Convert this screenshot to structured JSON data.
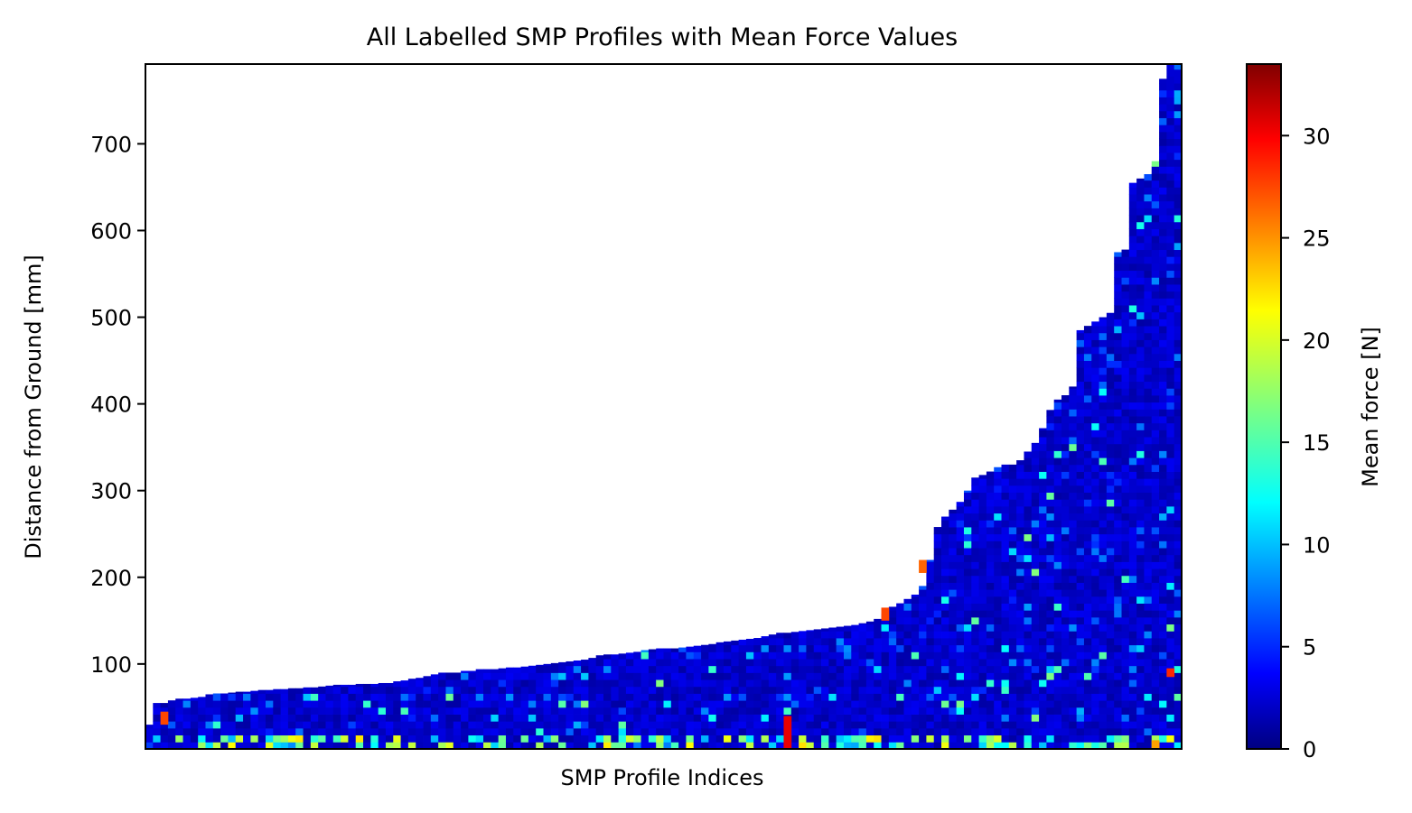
{
  "chart_data": {
    "type": "heatmap",
    "title": "All Labelled SMP Profiles with Mean Force Values",
    "xlabel": "SMP Profile Indices",
    "ylabel": "Distance from Ground [mm]",
    "ylim": [
      2,
      792
    ],
    "yticks": [
      100,
      200,
      300,
      400,
      500,
      600,
      700
    ],
    "xticks_shown": false,
    "profiles_sorted_by": "depth",
    "colorbar": {
      "label": "Mean force [N]",
      "colormap": "jet",
      "range": [
        0,
        33.5
      ],
      "ticks": [
        0,
        5,
        10,
        15,
        20,
        25,
        30
      ]
    },
    "profile_depths": [
      30,
      55,
      55,
      58,
      60,
      60,
      61,
      62,
      65,
      66,
      66,
      67,
      68,
      68,
      69,
      70,
      70,
      71,
      71,
      72,
      72,
      73,
      73,
      74,
      75,
      76,
      76,
      76,
      77,
      77,
      77,
      78,
      78,
      80,
      81,
      83,
      84,
      86,
      88,
      90,
      90,
      90,
      92,
      92,
      94,
      94,
      94,
      95,
      96,
      96,
      97,
      98,
      99,
      100,
      101,
      102,
      103,
      104,
      105,
      107,
      110,
      111,
      111,
      112,
      113,
      114,
      116,
      117,
      118,
      118,
      118,
      119,
      120,
      121,
      122,
      123,
      125,
      126,
      127,
      128,
      129,
      130,
      132,
      134,
      136,
      136,
      137,
      138,
      139,
      140,
      141,
      142,
      143,
      144,
      145,
      147,
      149,
      152,
      158,
      166,
      170,
      175,
      180,
      190,
      220,
      258,
      270,
      278,
      287,
      300,
      315,
      318,
      322,
      327,
      330,
      330,
      335,
      345,
      355,
      372,
      393,
      405,
      410,
      420,
      485,
      490,
      495,
      500,
      505,
      575,
      578,
      655,
      660,
      665,
      680,
      775,
      792,
      792
    ],
    "profile_depths_note_units": "mm",
    "hotspots": [
      {
        "profile": 2,
        "from": 30,
        "to": 45,
        "force": 27
      },
      {
        "profile": 85,
        "from": 2,
        "to": 40,
        "force": 30
      },
      {
        "profile": 98,
        "from": 150,
        "to": 165,
        "force": 27
      },
      {
        "profile": 103,
        "from": 205,
        "to": 220,
        "force": 26
      },
      {
        "profile": 136,
        "from": 85,
        "to": 95,
        "force": 28
      },
      {
        "profile": 134,
        "from": 2,
        "to": 12,
        "force": 24
      }
    ]
  }
}
